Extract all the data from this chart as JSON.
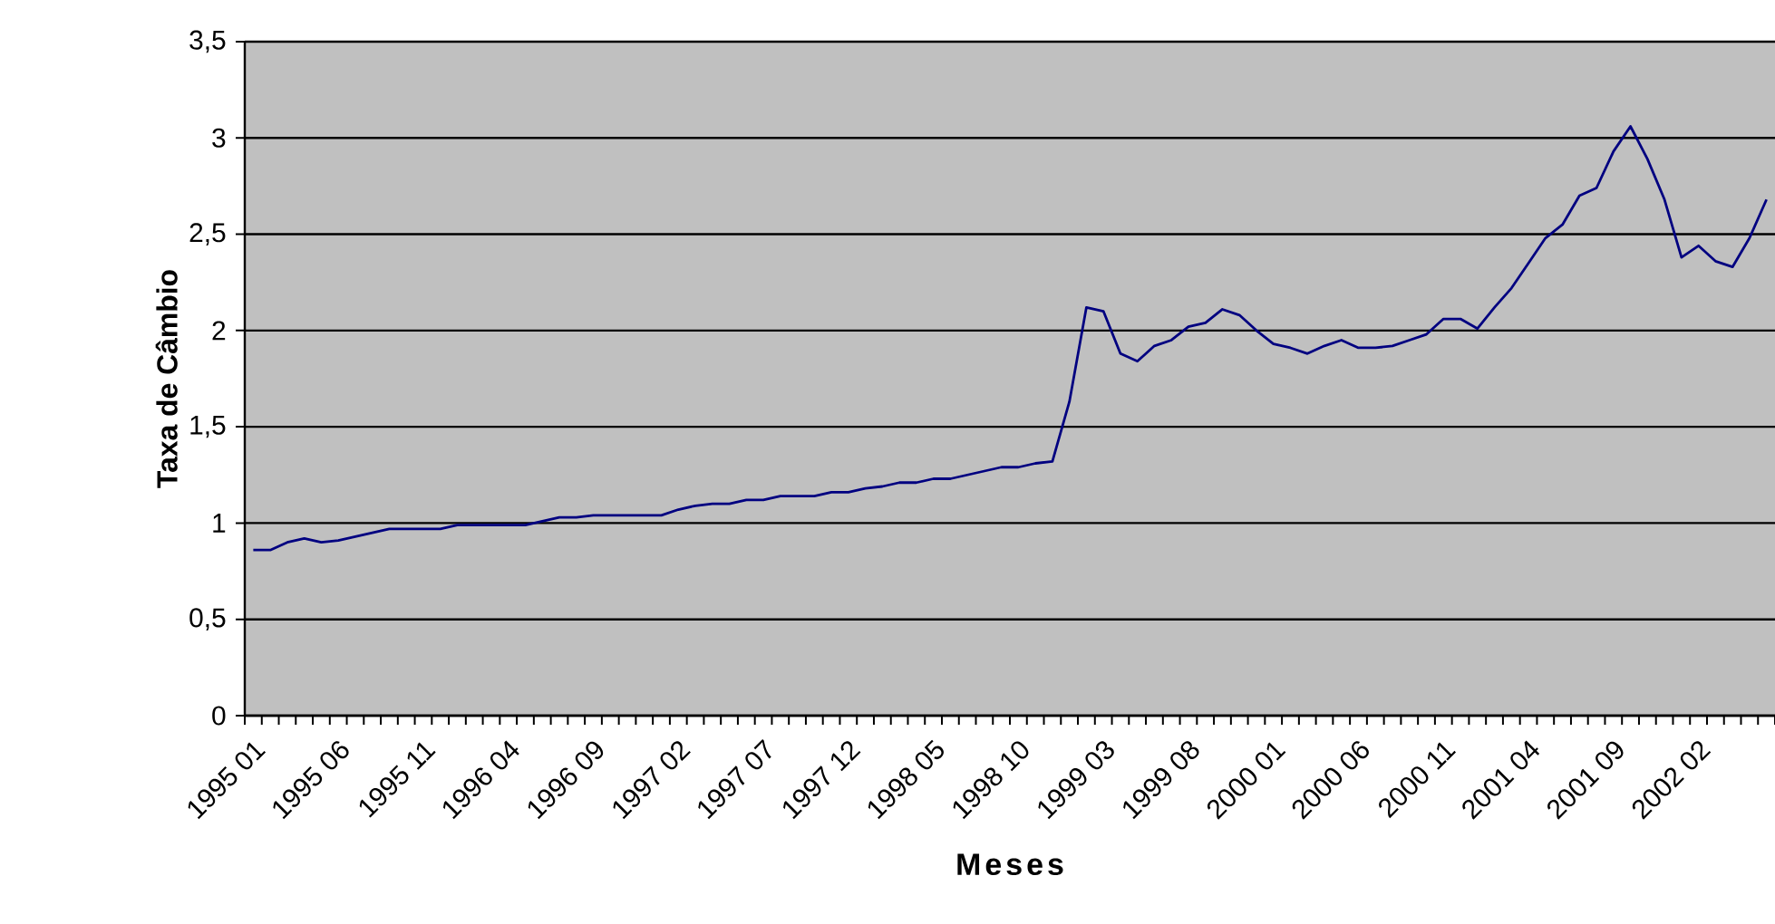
{
  "chart_data": {
    "type": "line",
    "xlabel": "Meses",
    "ylabel": "Taxa de Câmbio",
    "categories": [
      "1995 01",
      null,
      null,
      null,
      null,
      "1995 06",
      null,
      null,
      null,
      null,
      "1995 11",
      null,
      null,
      null,
      null,
      "1996 04",
      null,
      null,
      null,
      null,
      "1996 09",
      null,
      null,
      null,
      null,
      "1997 02",
      null,
      null,
      null,
      null,
      "1997 07",
      null,
      null,
      null,
      null,
      "1997 12",
      null,
      null,
      null,
      null,
      "1998 05",
      null,
      null,
      null,
      null,
      "1998 10",
      null,
      null,
      null,
      null,
      "1999 03",
      null,
      null,
      null,
      null,
      "1999 08",
      null,
      null,
      null,
      null,
      "2000 01",
      null,
      null,
      null,
      null,
      "2000 06",
      null,
      null,
      null,
      null,
      "2000 11",
      null,
      null,
      null,
      null,
      "2001 04",
      null,
      null,
      null,
      null,
      "2001 09",
      null,
      null,
      null,
      null,
      "2002 02",
      null,
      null,
      null,
      null
    ],
    "series": [
      {
        "color": "#000080",
        "values": [
          0.86,
          0.86,
          0.9,
          0.92,
          0.9,
          0.91,
          0.93,
          0.95,
          0.97,
          0.97,
          0.97,
          0.97,
          0.99,
          0.99,
          0.99,
          0.99,
          0.99,
          1.01,
          1.03,
          1.03,
          1.04,
          1.04,
          1.04,
          1.04,
          1.04,
          1.07,
          1.09,
          1.1,
          1.1,
          1.12,
          1.12,
          1.14,
          1.14,
          1.14,
          1.16,
          1.16,
          1.18,
          1.19,
          1.21,
          1.21,
          1.23,
          1.23,
          1.25,
          1.27,
          1.29,
          1.29,
          1.31,
          1.32,
          1.63,
          2.12,
          2.1,
          1.88,
          1.84,
          1.92,
          1.95,
          2.02,
          2.04,
          2.11,
          2.08,
          2.0,
          1.93,
          1.91,
          1.88,
          1.92,
          1.95,
          1.91,
          1.91,
          1.92,
          1.95,
          1.98,
          2.06,
          2.06,
          2.01,
          2.12,
          2.22,
          2.35,
          2.48,
          2.55,
          2.7,
          2.74,
          2.93,
          3.06,
          2.89,
          2.68,
          2.38,
          2.44,
          2.36,
          2.33,
          2.48,
          2.68
        ]
      }
    ],
    "ylim": [
      0,
      3.5
    ],
    "yticks": [
      0,
      {
        "value": 0.5,
        "label": "0,5"
      },
      1,
      {
        "value": 1.5,
        "label": "1,5"
      },
      2,
      {
        "value": 2.5,
        "label": "2,5"
      },
      3,
      {
        "value": 3.5,
        "label": "3,5"
      }
    ],
    "grid": "y",
    "marker": "none",
    "line_style": "solid",
    "legend": false
  }
}
